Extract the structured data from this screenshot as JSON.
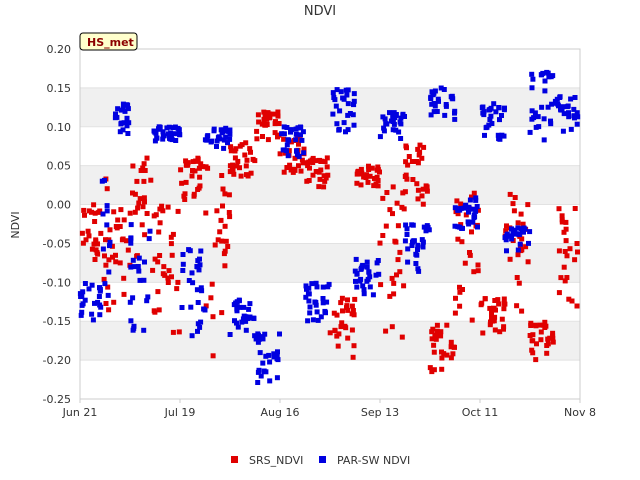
{
  "chart_data": {
    "type": "scatter",
    "title": "NDVI",
    "badge": "HS_met",
    "xlabel": "",
    "ylabel": "NDVI",
    "ylim": [
      -0.25,
      0.2
    ],
    "yticks": [
      -0.25,
      -0.2,
      -0.15,
      -0.1,
      -0.05,
      0.0,
      0.05,
      0.1,
      0.15,
      0.2
    ],
    "ytick_labels": [
      "-0.25",
      "-0.20",
      "-0.15",
      "-0.10",
      "-0.05",
      "0.00",
      "0.05",
      "0.10",
      "0.15",
      "0.20"
    ],
    "xlim_days": [
      0,
      140
    ],
    "xticks_days": [
      0,
      28,
      56,
      84,
      112,
      140
    ],
    "xtick_labels": [
      "Jun 21",
      "Jul 19",
      "Aug 16",
      "Sep 13",
      "Oct 11",
      "Nov 8"
    ],
    "legend_position": "bottom-center",
    "series": [
      {
        "name": "SRS_NDVI",
        "color": "#e00000",
        "segments": [
          {
            "start": 0,
            "end": 6,
            "hi": 0.0,
            "lo": -0.09
          },
          {
            "start": 6,
            "end": 9,
            "hi": 0.04,
            "lo": -0.14
          },
          {
            "start": 9,
            "end": 14,
            "hi": 0.0,
            "lo": -0.2
          },
          {
            "start": 14,
            "end": 20,
            "hi": 0.06,
            "lo": -0.07
          },
          {
            "start": 20,
            "end": 28,
            "hi": 0.0,
            "lo": -0.18
          },
          {
            "start": 28,
            "end": 35,
            "hi": 0.06,
            "lo": 0.0
          },
          {
            "start": 35,
            "end": 42,
            "hi": 0.05,
            "lo": -0.2
          },
          {
            "start": 42,
            "end": 49,
            "hi": 0.08,
            "lo": 0.03
          },
          {
            "start": 49,
            "end": 56,
            "hi": 0.12,
            "lo": 0.08
          },
          {
            "start": 56,
            "end": 63,
            "hi": 0.09,
            "lo": 0.04
          },
          {
            "start": 63,
            "end": 70,
            "hi": 0.06,
            "lo": 0.02
          },
          {
            "start": 70,
            "end": 77,
            "hi": -0.12,
            "lo": -0.2
          },
          {
            "start": 77,
            "end": 84,
            "hi": 0.05,
            "lo": 0.02
          },
          {
            "start": 84,
            "end": 91,
            "hi": 0.04,
            "lo": -0.18
          },
          {
            "start": 91,
            "end": 98,
            "hi": 0.08,
            "lo": 0.0
          },
          {
            "start": 98,
            "end": 105,
            "hi": -0.15,
            "lo": -0.22
          },
          {
            "start": 105,
            "end": 112,
            "hi": 0.02,
            "lo": -0.16
          },
          {
            "start": 112,
            "end": 119,
            "hi": -0.12,
            "lo": -0.17
          },
          {
            "start": 119,
            "end": 126,
            "hi": 0.02,
            "lo": -0.16
          },
          {
            "start": 126,
            "end": 133,
            "hi": -0.15,
            "lo": -0.2
          },
          {
            "start": 133,
            "end": 140,
            "hi": 0.01,
            "lo": -0.15
          }
        ]
      },
      {
        "name": "PAR-SW NDVI",
        "color": "#0000e0",
        "segments": [
          {
            "start": 0,
            "end": 6,
            "hi": -0.1,
            "lo": -0.15
          },
          {
            "start": 6,
            "end": 9,
            "hi": 0.04,
            "lo": -0.12
          },
          {
            "start": 9,
            "end": 14,
            "hi": 0.13,
            "lo": 0.09
          },
          {
            "start": 14,
            "end": 20,
            "hi": -0.02,
            "lo": -0.17
          },
          {
            "start": 20,
            "end": 28,
            "hi": 0.1,
            "lo": 0.08
          },
          {
            "start": 28,
            "end": 35,
            "hi": -0.05,
            "lo": -0.17
          },
          {
            "start": 35,
            "end": 42,
            "hi": 0.1,
            "lo": 0.07
          },
          {
            "start": 42,
            "end": 49,
            "hi": -0.12,
            "lo": -0.17
          },
          {
            "start": 49,
            "end": 56,
            "hi": -0.16,
            "lo": -0.23
          },
          {
            "start": 56,
            "end": 63,
            "hi": 0.1,
            "lo": 0.06
          },
          {
            "start": 63,
            "end": 70,
            "hi": -0.1,
            "lo": -0.15
          },
          {
            "start": 70,
            "end": 77,
            "hi": 0.15,
            "lo": 0.09
          },
          {
            "start": 77,
            "end": 84,
            "hi": -0.07,
            "lo": -0.12
          },
          {
            "start": 84,
            "end": 91,
            "hi": 0.12,
            "lo": 0.08
          },
          {
            "start": 91,
            "end": 98,
            "hi": -0.02,
            "lo": -0.09
          },
          {
            "start": 98,
            "end": 105,
            "hi": 0.15,
            "lo": 0.1
          },
          {
            "start": 105,
            "end": 112,
            "hi": 0.01,
            "lo": -0.04
          },
          {
            "start": 112,
            "end": 119,
            "hi": 0.13,
            "lo": 0.08
          },
          {
            "start": 119,
            "end": 126,
            "hi": -0.03,
            "lo": -0.06
          },
          {
            "start": 126,
            "end": 133,
            "hi": 0.17,
            "lo": 0.08
          },
          {
            "start": 133,
            "end": 140,
            "hi": 0.14,
            "lo": 0.09
          }
        ]
      }
    ]
  }
}
